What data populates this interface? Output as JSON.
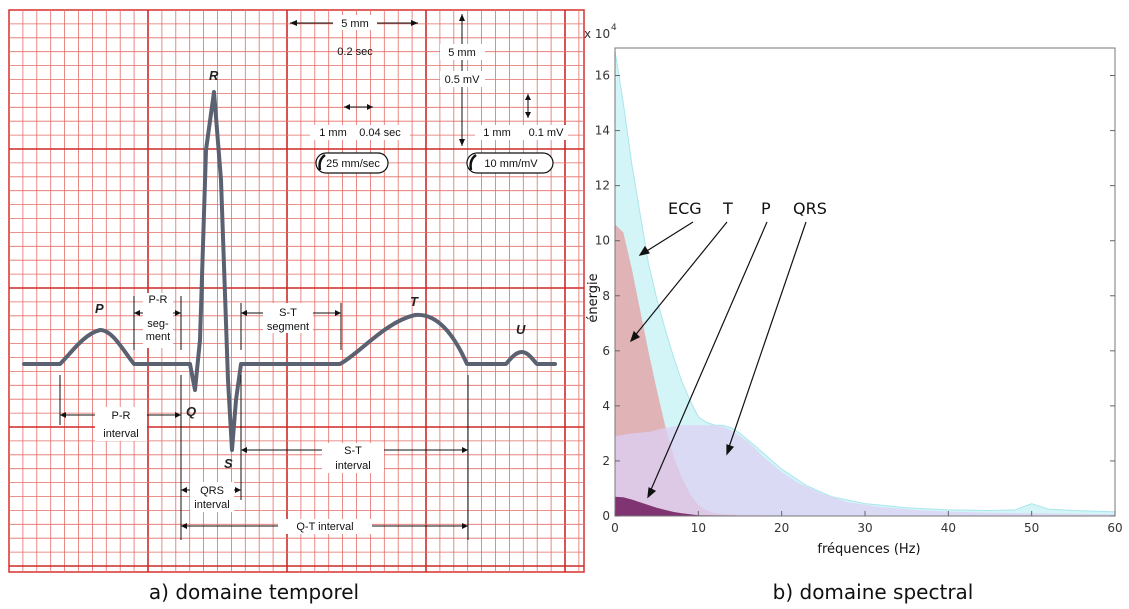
{
  "captions": {
    "a": "a) domaine temporel",
    "b": "b) domaine spectral"
  },
  "ecg": {
    "waves": {
      "p": "P",
      "q": "Q",
      "r": "R",
      "s": "S",
      "t": "T",
      "u": "U"
    },
    "scale": {
      "h_major_mm": "5 mm",
      "h_major_time": "0.2 sec",
      "v_major_mm": "5 mm",
      "v_major_volt": "0.5 mV",
      "h_minor_mm": "1 mm",
      "h_minor_time": "0.04 sec",
      "v_minor_mm": "1 mm",
      "v_minor_volt": "0.1 mV",
      "speed": "25 mm/sec",
      "gain": "10 mm/mV"
    },
    "intervals": {
      "pr_segment": [
        "P-R",
        "seg-",
        "ment"
      ],
      "st_segment": [
        "S-T",
        "segment"
      ],
      "pr_interval": [
        "P-R",
        "interval"
      ],
      "qrs_interval": [
        "QRS",
        "interval"
      ],
      "st_interval": [
        "S-T",
        "interval"
      ],
      "qt_interval": "Q-T  interval"
    }
  },
  "spectrum": {
    "exponent": "x 10",
    "exponent_power": "4",
    "xlabel": "fréquences (Hz)",
    "ylabel": "énergie",
    "legend": [
      "ECG",
      "T",
      "P",
      "QRS"
    ]
  },
  "chart_data": {
    "type": "area",
    "xlabel": "fréquences (Hz)",
    "ylabel": "énergie",
    "y_multiplier": "x 10^4",
    "xlim": [
      0,
      60
    ],
    "ylim": [
      0,
      17
    ],
    "xticks": [
      0,
      10,
      20,
      30,
      40,
      50,
      60
    ],
    "yticks": [
      0,
      2,
      4,
      6,
      8,
      10,
      12,
      14,
      16
    ],
    "legend_placement": "in-plot annotations with arrows",
    "grid": false,
    "series": [
      {
        "name": "ECG",
        "color": "#cdf3f6",
        "points": [
          [
            0,
            16.9
          ],
          [
            1,
            15
          ],
          [
            2,
            12.8
          ],
          [
            3,
            11
          ],
          [
            4,
            9.2
          ],
          [
            5,
            7.9
          ],
          [
            6,
            6.8
          ],
          [
            7,
            5.8
          ],
          [
            8,
            4.9
          ],
          [
            9,
            4.2
          ],
          [
            10,
            3.6
          ],
          [
            11,
            3.4
          ],
          [
            12,
            3.3
          ],
          [
            13,
            3.3
          ],
          [
            14,
            3.2
          ],
          [
            15,
            3.0
          ],
          [
            17,
            2.5
          ],
          [
            20,
            1.7
          ],
          [
            23,
            1.1
          ],
          [
            26,
            0.7
          ],
          [
            30,
            0.45
          ],
          [
            35,
            0.3
          ],
          [
            40,
            0.22
          ],
          [
            45,
            0.2
          ],
          [
            48,
            0.22
          ],
          [
            50,
            0.45
          ],
          [
            52,
            0.25
          ],
          [
            55,
            0.2
          ],
          [
            60,
            0.15
          ]
        ]
      },
      {
        "name": "T",
        "color": "#e2a7ab",
        "points": [
          [
            0,
            10.6
          ],
          [
            1,
            10.3
          ],
          [
            2,
            9
          ],
          [
            3,
            7.5
          ],
          [
            4,
            6
          ],
          [
            5,
            4.6
          ],
          [
            6,
            3.3
          ],
          [
            7,
            2.2
          ],
          [
            8,
            1.4
          ],
          [
            9,
            0.8
          ],
          [
            10,
            0.4
          ],
          [
            11,
            0.2
          ],
          [
            12,
            0.1
          ],
          [
            14,
            0.05
          ],
          [
            20,
            0.02
          ],
          [
            60,
            0.0
          ]
        ]
      },
      {
        "name": "QRS",
        "color": "#dcd0f4",
        "points": [
          [
            0,
            2.9
          ],
          [
            2,
            3.0
          ],
          [
            4,
            3.05
          ],
          [
            6,
            3.2
          ],
          [
            8,
            3.3
          ],
          [
            10,
            3.3
          ],
          [
            12,
            3.3
          ],
          [
            13,
            3.25
          ],
          [
            14,
            3.1
          ],
          [
            16,
            2.7
          ],
          [
            18,
            2.1
          ],
          [
            20,
            1.6
          ],
          [
            22,
            1.2
          ],
          [
            25,
            0.8
          ],
          [
            28,
            0.5
          ],
          [
            32,
            0.32
          ],
          [
            36,
            0.22
          ],
          [
            40,
            0.16
          ],
          [
            45,
            0.12
          ],
          [
            50,
            0.1
          ],
          [
            55,
            0.08
          ],
          [
            60,
            0.06
          ]
        ]
      },
      {
        "name": "P",
        "color": "#7a2c6b",
        "points": [
          [
            0,
            0.7
          ],
          [
            1,
            0.68
          ],
          [
            2,
            0.6
          ],
          [
            3,
            0.5
          ],
          [
            4,
            0.4
          ],
          [
            5,
            0.3
          ],
          [
            6,
            0.22
          ],
          [
            7,
            0.15
          ],
          [
            8,
            0.1
          ],
          [
            9,
            0.06
          ],
          [
            10,
            0.03
          ],
          [
            12,
            0.02
          ],
          [
            20,
            0.01
          ],
          [
            60,
            0.0
          ]
        ]
      }
    ]
  }
}
